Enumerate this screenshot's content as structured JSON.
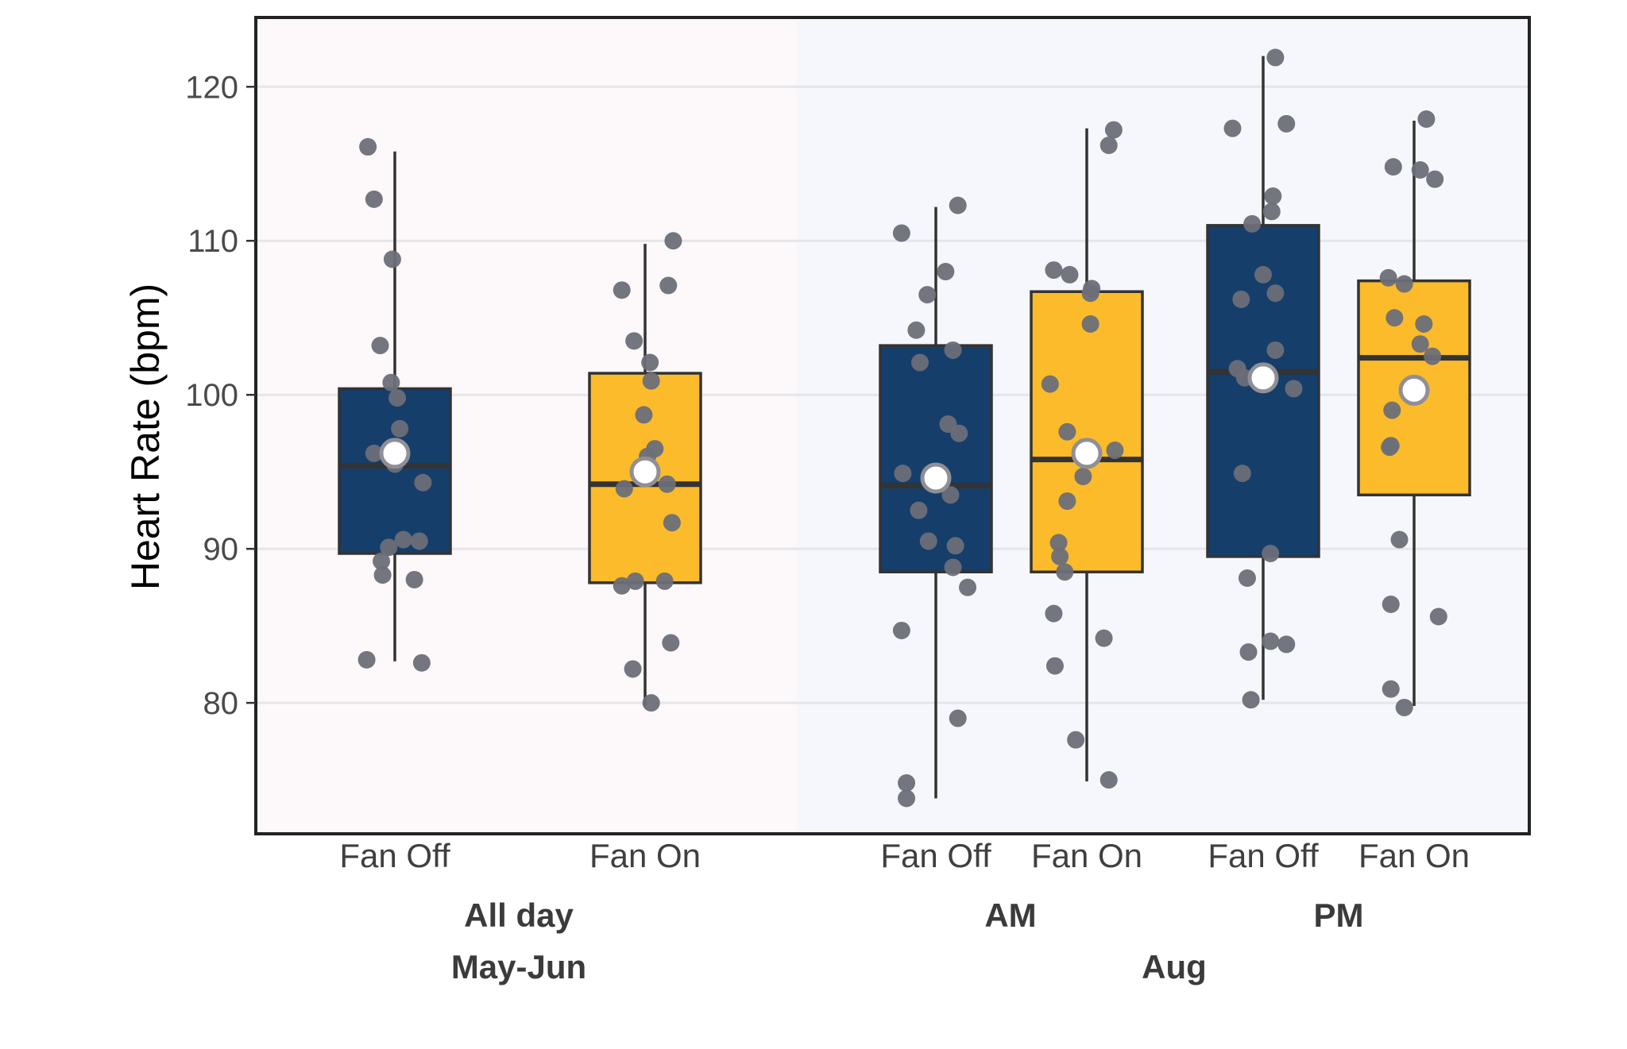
{
  "chart_data": {
    "type": "box",
    "ylabel": "Heart Rate (bpm)",
    "y_ticks": [
      80,
      90,
      100,
      110,
      120
    ],
    "ylim": [
      71.5,
      124.5
    ],
    "grid": "horizontal",
    "legend": "none",
    "periods": [
      {
        "label": "May-Jun",
        "background": "#fdf8f9",
        "time_groups": [
          {
            "label": "All day",
            "boxes": [
              {
                "category": "Fan Off",
                "color": "#153e6b",
                "min": 82.7,
                "q1": 89.7,
                "median": 95.4,
                "q3": 100.4,
                "max": 115.8,
                "mean": 96.2,
                "points": [
                  [
                    -0.22,
                    116.1
                  ],
                  [
                    -0.17,
                    112.7
                  ],
                  [
                    -0.02,
                    108.8
                  ],
                  [
                    -0.12,
                    103.2
                  ],
                  [
                    -0.03,
                    100.8
                  ],
                  [
                    0.02,
                    99.8
                  ],
                  [
                    0.04,
                    97.8
                  ],
                  [
                    -0.17,
                    96.2
                  ],
                  [
                    0.0,
                    95.5
                  ],
                  [
                    0.23,
                    94.3
                  ],
                  [
                    0.07,
                    90.6
                  ],
                  [
                    0.2,
                    90.5
                  ],
                  [
                    -0.05,
                    90.1
                  ],
                  [
                    -0.11,
                    89.2
                  ],
                  [
                    -0.1,
                    88.3
                  ],
                  [
                    0.16,
                    88.0
                  ],
                  [
                    -0.23,
                    82.8
                  ],
                  [
                    0.22,
                    82.6
                  ]
                ]
              },
              {
                "category": "Fan On",
                "color": "#fbbb2a",
                "min": 79.8,
                "q1": 87.8,
                "median": 94.2,
                "q3": 101.4,
                "max": 109.8,
                "mean": 95.0,
                "points": [
                  [
                    0.23,
                    110.0
                  ],
                  [
                    0.19,
                    107.1
                  ],
                  [
                    -0.19,
                    106.8
                  ],
                  [
                    -0.09,
                    103.5
                  ],
                  [
                    0.04,
                    102.1
                  ],
                  [
                    0.05,
                    100.9
                  ],
                  [
                    -0.01,
                    98.7
                  ],
                  [
                    0.08,
                    96.5
                  ],
                  [
                    0.02,
                    96.0
                  ],
                  [
                    0.18,
                    94.2
                  ],
                  [
                    -0.17,
                    93.9
                  ],
                  [
                    0.22,
                    91.7
                  ],
                  [
                    -0.08,
                    87.9
                  ],
                  [
                    0.16,
                    87.9
                  ],
                  [
                    -0.19,
                    87.6
                  ],
                  [
                    0.21,
                    83.9
                  ],
                  [
                    -0.1,
                    82.2
                  ],
                  [
                    0.05,
                    80.0
                  ]
                ]
              }
            ]
          }
        ]
      },
      {
        "label": "Aug",
        "background": "#f6f7fc",
        "time_groups": [
          {
            "label": "AM",
            "boxes": [
              {
                "category": "Fan Off",
                "color": "#153e6b",
                "min": 73.8,
                "q1": 88.5,
                "median": 94.1,
                "q3": 103.2,
                "max": 112.2,
                "mean": 94.6,
                "points": [
                  [
                    0.18,
                    112.3
                  ],
                  [
                    -0.28,
                    110.5
                  ],
                  [
                    0.08,
                    108.0
                  ],
                  [
                    -0.07,
                    106.5
                  ],
                  [
                    -0.16,
                    104.2
                  ],
                  [
                    0.14,
                    102.9
                  ],
                  [
                    -0.13,
                    102.1
                  ],
                  [
                    0.1,
                    98.1
                  ],
                  [
                    0.19,
                    97.5
                  ],
                  [
                    -0.27,
                    94.9
                  ],
                  [
                    0.12,
                    93.5
                  ],
                  [
                    -0.14,
                    92.5
                  ],
                  [
                    -0.06,
                    90.5
                  ],
                  [
                    0.16,
                    90.2
                  ],
                  [
                    0.14,
                    88.8
                  ],
                  [
                    0.26,
                    87.5
                  ],
                  [
                    -0.28,
                    84.7
                  ],
                  [
                    0.18,
                    79.0
                  ],
                  [
                    -0.24,
                    74.8
                  ],
                  [
                    -0.24,
                    73.8
                  ]
                ]
              },
              {
                "category": "Fan On",
                "color": "#fbbb2a",
                "min": 74.9,
                "q1": 88.5,
                "median": 95.8,
                "q3": 106.7,
                "max": 117.3,
                "mean": 96.2,
                "points": [
                  [
                    0.22,
                    117.2
                  ],
                  [
                    0.18,
                    116.2
                  ],
                  [
                    -0.27,
                    108.1
                  ],
                  [
                    -0.14,
                    107.8
                  ],
                  [
                    0.04,
                    106.9
                  ],
                  [
                    0.03,
                    106.6
                  ],
                  [
                    0.03,
                    104.6
                  ],
                  [
                    -0.3,
                    100.7
                  ],
                  [
                    -0.16,
                    97.6
                  ],
                  [
                    0.23,
                    96.4
                  ],
                  [
                    -0.03,
                    94.7
                  ],
                  [
                    -0.16,
                    93.1
                  ],
                  [
                    -0.23,
                    90.4
                  ],
                  [
                    -0.22,
                    89.5
                  ],
                  [
                    -0.18,
                    88.5
                  ],
                  [
                    -0.27,
                    85.8
                  ],
                  [
                    0.14,
                    84.2
                  ],
                  [
                    -0.26,
                    82.4
                  ],
                  [
                    -0.09,
                    77.6
                  ],
                  [
                    0.18,
                    75.0
                  ]
                ]
              }
            ]
          },
          {
            "label": "PM",
            "boxes": [
              {
                "category": "Fan Off",
                "color": "#153e6b",
                "min": 80.2,
                "q1": 89.5,
                "median": 101.5,
                "q3": 111.0,
                "max": 122.0,
                "mean": 101.1,
                "points": [
                  [
                    0.1,
                    121.9
                  ],
                  [
                    -0.25,
                    117.3
                  ],
                  [
                    0.19,
                    117.6
                  ],
                  [
                    0.08,
                    112.9
                  ],
                  [
                    0.07,
                    111.9
                  ],
                  [
                    -0.09,
                    111.1
                  ],
                  [
                    0.0,
                    107.8
                  ],
                  [
                    0.1,
                    106.6
                  ],
                  [
                    -0.18,
                    106.2
                  ],
                  [
                    -0.21,
                    101.7
                  ],
                  [
                    -0.15,
                    101.1
                  ],
                  [
                    0.1,
                    102.9
                  ],
                  [
                    0.25,
                    100.4
                  ],
                  [
                    -0.17,
                    94.9
                  ],
                  [
                    0.06,
                    89.7
                  ],
                  [
                    -0.13,
                    88.1
                  ],
                  [
                    0.06,
                    84.0
                  ],
                  [
                    0.19,
                    83.8
                  ],
                  [
                    -0.12,
                    83.3
                  ],
                  [
                    -0.1,
                    80.2
                  ]
                ]
              },
              {
                "category": "Fan On",
                "color": "#fbbb2a",
                "min": 79.8,
                "q1": 93.5,
                "median": 102.4,
                "q3": 107.4,
                "max": 117.8,
                "mean": 100.3,
                "points": [
                  [
                    0.1,
                    117.9
                  ],
                  [
                    -0.17,
                    114.8
                  ],
                  [
                    0.05,
                    114.6
                  ],
                  [
                    0.17,
                    114.0
                  ],
                  [
                    -0.21,
                    107.6
                  ],
                  [
                    -0.08,
                    107.2
                  ],
                  [
                    -0.16,
                    105.0
                  ],
                  [
                    0.08,
                    104.6
                  ],
                  [
                    0.05,
                    103.3
                  ],
                  [
                    0.15,
                    102.5
                  ],
                  [
                    -0.18,
                    99.0
                  ],
                  [
                    -0.2,
                    96.6
                  ],
                  [
                    -0.19,
                    96.7
                  ],
                  [
                    -0.12,
                    90.6
                  ],
                  [
                    -0.19,
                    86.4
                  ],
                  [
                    0.2,
                    85.6
                  ],
                  [
                    -0.19,
                    80.9
                  ],
                  [
                    -0.08,
                    79.7
                  ]
                ]
              }
            ]
          }
        ]
      }
    ],
    "colors": {
      "fan_off": "#153e6b",
      "fan_on": "#fbbb2a",
      "points": "#6b6e78",
      "mean_marker": "#ffffff",
      "median_line": "#333333",
      "frame": "#222222",
      "grid": "#e6e6ea"
    }
  }
}
